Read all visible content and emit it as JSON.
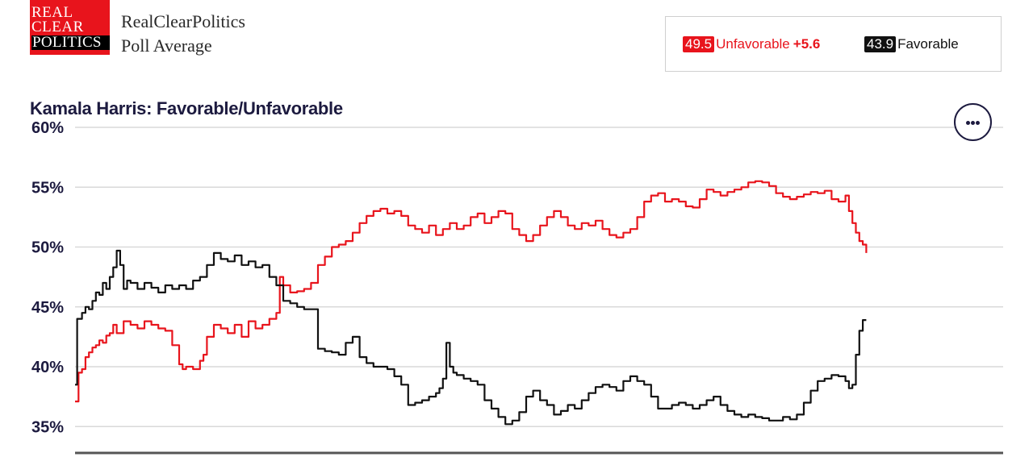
{
  "logo": {
    "line1": "REAL",
    "line2": "CLEAR",
    "line3": "POLITICS"
  },
  "site": {
    "name": "RealClearPolitics",
    "subtitle": "Poll Average"
  },
  "legend": {
    "unfavorable": {
      "value": "49.5",
      "label": "Unfavorable",
      "spread": "+5.6"
    },
    "favorable": {
      "value": "43.9",
      "label": "Favorable"
    }
  },
  "menu_icon": "more-horizontal-icon",
  "colors": {
    "unfavorable": "#e8141c",
    "favorable": "#111111",
    "grid": "#d9d9d9",
    "axis": "#555555",
    "title": "#1c1a3f"
  },
  "chart_data": {
    "type": "line",
    "title": "Kamala Harris: Favorable/Unfavorable",
    "xlabel": "",
    "ylabel": "",
    "ylim": [
      34,
      60
    ],
    "y_ticks": [
      60,
      55,
      50,
      45,
      40,
      35
    ],
    "y_tick_labels": [
      "60%",
      "55%",
      "50%",
      "45%",
      "40%",
      "35%"
    ],
    "grid": true,
    "x_index_range": [
      0,
      100
    ],
    "series": [
      {
        "name": "Unfavorable",
        "color": "#e8141c",
        "points": [
          [
            0,
            37.1
          ],
          [
            0.5,
            39.5
          ],
          [
            1,
            39.8
          ],
          [
            1.5,
            40.8
          ],
          [
            2,
            41.2
          ],
          [
            2.5,
            41.6
          ],
          [
            3,
            41.8
          ],
          [
            3.5,
            42.2
          ],
          [
            4,
            42.0
          ],
          [
            4.5,
            42.6
          ],
          [
            5,
            42.8
          ],
          [
            5.5,
            43.5
          ],
          [
            6,
            42.8
          ],
          [
            7,
            43.8
          ],
          [
            8,
            43.5
          ],
          [
            9,
            43.2
          ],
          [
            10,
            43.8
          ],
          [
            11,
            43.5
          ],
          [
            12,
            43.2
          ],
          [
            13,
            43.0
          ],
          [
            14,
            41.8
          ],
          [
            15,
            40.2
          ],
          [
            15.5,
            39.8
          ],
          [
            16,
            40.0
          ],
          [
            17,
            39.8
          ],
          [
            18,
            40.5
          ],
          [
            18.5,
            41.0
          ],
          [
            19,
            42.5
          ],
          [
            20,
            43.5
          ],
          [
            21,
            43.2
          ],
          [
            22,
            42.8
          ],
          [
            23,
            43.5
          ],
          [
            24,
            42.5
          ],
          [
            25,
            43.8
          ],
          [
            26,
            43.2
          ],
          [
            27,
            43.5
          ],
          [
            28,
            44.0
          ],
          [
            29,
            44.5
          ],
          [
            29.5,
            47.5
          ],
          [
            30,
            46.8
          ],
          [
            31,
            46.2
          ],
          [
            32,
            46.3
          ],
          [
            33,
            46.5
          ],
          [
            34,
            47.0
          ],
          [
            35,
            48.5
          ],
          [
            36,
            49.2
          ],
          [
            37,
            50.0
          ],
          [
            38,
            50.2
          ],
          [
            39,
            50.5
          ],
          [
            40,
            51.2
          ],
          [
            41,
            52.0
          ],
          [
            42,
            52.6
          ],
          [
            43,
            53.0
          ],
          [
            44,
            53.2
          ],
          [
            45,
            52.8
          ],
          [
            46,
            53.0
          ],
          [
            47,
            52.6
          ],
          [
            48,
            51.8
          ],
          [
            49,
            51.5
          ],
          [
            50,
            51.2
          ],
          [
            51,
            51.8
          ],
          [
            52,
            51.0
          ],
          [
            53,
            51.5
          ],
          [
            54,
            52.0
          ],
          [
            55,
            51.5
          ],
          [
            56,
            51.8
          ],
          [
            57,
            52.5
          ],
          [
            58,
            52.8
          ],
          [
            59,
            52.0
          ],
          [
            60,
            52.5
          ],
          [
            61,
            53.0
          ],
          [
            62,
            52.8
          ],
          [
            63,
            51.5
          ],
          [
            64,
            51.0
          ],
          [
            65,
            50.5
          ],
          [
            66,
            51.0
          ],
          [
            67,
            51.8
          ],
          [
            68,
            52.5
          ],
          [
            69,
            53.0
          ],
          [
            70,
            52.5
          ],
          [
            71,
            51.8
          ],
          [
            72,
            51.5
          ],
          [
            73,
            52.0
          ],
          [
            74,
            51.8
          ],
          [
            75,
            52.2
          ],
          [
            76,
            51.5
          ],
          [
            77,
            51.0
          ],
          [
            78,
            50.8
          ],
          [
            79,
            51.2
          ],
          [
            80,
            51.5
          ],
          [
            81,
            52.5
          ],
          [
            82,
            53.8
          ],
          [
            83,
            54.3
          ],
          [
            84,
            54.5
          ],
          [
            85,
            53.8
          ],
          [
            86,
            54.0
          ],
          [
            87,
            53.8
          ],
          [
            88,
            53.4
          ],
          [
            89,
            53.3
          ],
          [
            90,
            54.0
          ],
          [
            91,
            54.8
          ],
          [
            92,
            54.6
          ],
          [
            93,
            54.3
          ],
          [
            94,
            54.6
          ],
          [
            95,
            54.8
          ],
          [
            96,
            55.0
          ],
          [
            97,
            55.4
          ],
          [
            98,
            55.5
          ],
          [
            99,
            55.4
          ],
          [
            100,
            55.1
          ],
          [
            101,
            54.5
          ],
          [
            102,
            54.2
          ],
          [
            103,
            54.0
          ],
          [
            104,
            54.2
          ],
          [
            105,
            54.4
          ],
          [
            106,
            54.6
          ],
          [
            107,
            54.5
          ],
          [
            108,
            54.7
          ],
          [
            109,
            54.0
          ],
          [
            110,
            53.8
          ],
          [
            111,
            54.3
          ],
          [
            111.5,
            53.0
          ],
          [
            112,
            52.0
          ],
          [
            112.5,
            51.2
          ],
          [
            113,
            50.5
          ],
          [
            113.5,
            50.2
          ],
          [
            114,
            49.5
          ]
        ]
      },
      {
        "name": "Favorable",
        "color": "#111111",
        "points": [
          [
            0,
            38.5
          ],
          [
            0.3,
            44.0
          ],
          [
            1,
            44.5
          ],
          [
            1.5,
            45.0
          ],
          [
            2,
            44.8
          ],
          [
            2.5,
            45.5
          ],
          [
            3,
            46.2
          ],
          [
            3.5,
            46.0
          ],
          [
            4,
            47.0
          ],
          [
            4.5,
            46.5
          ],
          [
            5,
            47.5
          ],
          [
            5.5,
            48.3
          ],
          [
            6,
            49.7
          ],
          [
            6.5,
            48.5
          ],
          [
            7,
            46.5
          ],
          [
            7.5,
            47.2
          ],
          [
            8,
            47.0
          ],
          [
            9,
            46.5
          ],
          [
            10,
            47.0
          ],
          [
            11,
            46.6
          ],
          [
            12,
            46.2
          ],
          [
            13,
            46.8
          ],
          [
            14,
            46.5
          ],
          [
            15,
            46.8
          ],
          [
            16,
            46.5
          ],
          [
            17,
            47.2
          ],
          [
            18,
            47.5
          ],
          [
            19,
            48.5
          ],
          [
            20,
            49.5
          ],
          [
            21,
            49.0
          ],
          [
            22,
            48.8
          ],
          [
            23,
            49.3
          ],
          [
            24,
            48.5
          ],
          [
            25,
            48.8
          ],
          [
            26,
            48.3
          ],
          [
            27,
            48.5
          ],
          [
            28,
            47.5
          ],
          [
            29,
            46.8
          ],
          [
            30,
            45.5
          ],
          [
            31,
            45.3
          ],
          [
            32,
            45.0
          ],
          [
            33,
            44.8
          ],
          [
            34,
            44.8
          ],
          [
            35,
            41.5
          ],
          [
            36,
            41.3
          ],
          [
            37,
            41.2
          ],
          [
            38,
            41.0
          ],
          [
            39,
            42.0
          ],
          [
            40,
            42.5
          ],
          [
            41,
            40.8
          ],
          [
            42,
            40.3
          ],
          [
            43,
            40.0
          ],
          [
            44,
            40.0
          ],
          [
            45,
            39.8
          ],
          [
            46,
            39.2
          ],
          [
            47,
            38.5
          ],
          [
            48,
            36.8
          ],
          [
            49,
            37.0
          ],
          [
            50,
            37.2
          ],
          [
            51,
            37.5
          ],
          [
            52,
            37.8
          ],
          [
            52.5,
            38.2
          ],
          [
            53,
            39.0
          ],
          [
            53.5,
            42.0
          ],
          [
            54,
            40.0
          ],
          [
            54.5,
            39.5
          ],
          [
            55,
            39.3
          ],
          [
            56,
            39.0
          ],
          [
            57,
            38.8
          ],
          [
            58,
            38.5
          ],
          [
            59,
            37.2
          ],
          [
            60,
            36.5
          ],
          [
            61,
            35.8
          ],
          [
            62,
            35.2
          ],
          [
            63,
            35.5
          ],
          [
            64,
            36.2
          ],
          [
            65,
            37.5
          ],
          [
            66,
            38.0
          ],
          [
            67,
            37.2
          ],
          [
            68,
            36.8
          ],
          [
            69,
            36.0
          ],
          [
            70,
            36.3
          ],
          [
            71,
            36.8
          ],
          [
            72,
            36.5
          ],
          [
            73,
            37.2
          ],
          [
            74,
            37.8
          ],
          [
            75,
            38.3
          ],
          [
            76,
            38.5
          ],
          [
            77,
            38.3
          ],
          [
            78,
            38.0
          ],
          [
            79,
            38.8
          ],
          [
            80,
            39.2
          ],
          [
            81,
            38.8
          ],
          [
            82,
            38.5
          ],
          [
            83,
            37.5
          ],
          [
            84,
            36.5
          ],
          [
            85,
            36.5
          ],
          [
            86,
            36.8
          ],
          [
            87,
            37.0
          ],
          [
            88,
            36.8
          ],
          [
            89,
            36.5
          ],
          [
            90,
            36.8
          ],
          [
            91,
            37.2
          ],
          [
            92,
            37.5
          ],
          [
            93,
            36.8
          ],
          [
            94,
            36.3
          ],
          [
            95,
            36.0
          ],
          [
            96,
            35.8
          ],
          [
            97,
            36.0
          ],
          [
            98,
            35.8
          ],
          [
            99,
            35.7
          ],
          [
            100,
            35.5
          ],
          [
            101,
            35.5
          ],
          [
            102,
            35.8
          ],
          [
            103,
            35.6
          ],
          [
            104,
            36.0
          ],
          [
            105,
            37.0
          ],
          [
            106,
            38.0
          ],
          [
            107,
            38.8
          ],
          [
            108,
            39.0
          ],
          [
            109,
            39.3
          ],
          [
            110,
            39.2
          ],
          [
            111,
            38.8
          ],
          [
            111.5,
            38.2
          ],
          [
            112,
            38.5
          ],
          [
            112.5,
            41.0
          ],
          [
            113,
            43.0
          ],
          [
            113.5,
            43.9
          ],
          [
            114,
            43.9
          ]
        ]
      }
    ]
  }
}
